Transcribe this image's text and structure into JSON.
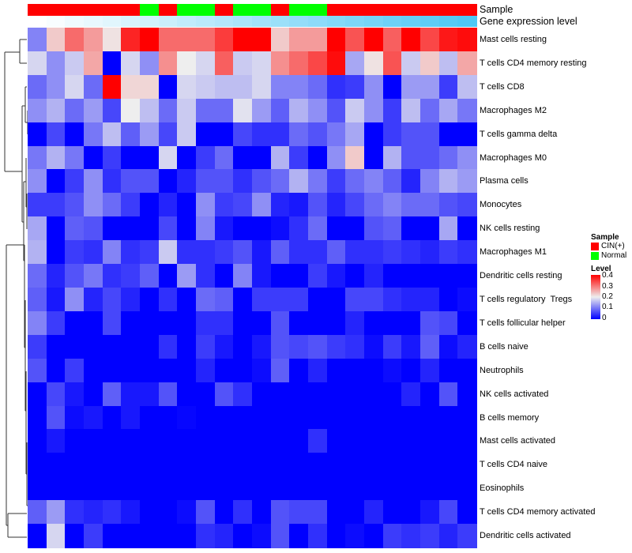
{
  "chart_data": {
    "type": "heatmap",
    "title": "",
    "columns_count": 24,
    "annotations": {
      "sample": {
        "label": "Sample",
        "values": [
          "CIN(+)",
          "CIN(+)",
          "CIN(+)",
          "CIN(+)",
          "CIN(+)",
          "CIN(+)",
          "Normal",
          "CIN(+)",
          "Normal",
          "Normal",
          "CIN(+)",
          "Normal",
          "Normal",
          "CIN(+)",
          "Normal",
          "Normal",
          "CIN(+)",
          "CIN(+)",
          "CIN(+)",
          "CIN(+)",
          "CIN(+)",
          "CIN(+)",
          "CIN(+)",
          "CIN(+)"
        ],
        "colors": {
          "CIN(+)": "#FF0000",
          "Normal": "#00FF00"
        }
      },
      "gene_expression_level": {
        "label": "Gene expression level",
        "values": [
          0.0,
          0.04,
          0.09,
          0.13,
          0.17,
          0.22,
          0.26,
          0.3,
          0.35,
          0.39,
          0.43,
          0.48,
          0.52,
          0.57,
          0.61,
          0.65,
          0.7,
          0.74,
          0.78,
          0.83,
          0.87,
          0.91,
          0.96,
          1.0
        ],
        "color_low": "#FFFFFF",
        "color_high": "#4FC8F5"
      }
    },
    "rows": [
      {
        "label": "Mast cells resting",
        "values": [
          0.11,
          0.23,
          0.31,
          0.27,
          0.21,
          0.37,
          0.4,
          0.31,
          0.31,
          0.31,
          0.35,
          0.4,
          0.4,
          0.23,
          0.27,
          0.27,
          0.4,
          0.33,
          0.4,
          0.32,
          0.4,
          0.34,
          0.38,
          0.39
        ]
      },
      {
        "label": "T cells CD4 memory resting",
        "values": [
          0.18,
          0.12,
          0.17,
          0.26,
          0,
          0.18,
          0.12,
          0.28,
          0.2,
          0.18,
          0.32,
          0.17,
          0.18,
          0.28,
          0.31,
          0.34,
          0.39,
          0.14,
          0.21,
          0.33,
          0.17,
          0.23,
          0.16,
          0.26
        ]
      },
      {
        "label": "T cells CD8",
        "values": [
          0.09,
          0.12,
          0.18,
          0.09,
          0.4,
          0.22,
          0.22,
          0,
          0.18,
          0.17,
          0.16,
          0.16,
          0.18,
          0.11,
          0.11,
          0.09,
          0.04,
          0.05,
          0.12,
          0,
          0.13,
          0.13,
          0.05,
          0.16
        ]
      },
      {
        "label": "Macrophages M2",
        "values": [
          0.12,
          0.15,
          0.09,
          0.13,
          0.06,
          0.2,
          0.16,
          0.09,
          0.17,
          0.09,
          0.09,
          0.19,
          0.13,
          0.08,
          0.15,
          0.12,
          0.07,
          0.17,
          0.12,
          0.05,
          0.16,
          0.09,
          0.14,
          0.1
        ]
      },
      {
        "label": "T cells gamma delta",
        "values": [
          0,
          0.06,
          0,
          0.1,
          0.16,
          0.08,
          0.13,
          0.06,
          0.17,
          0,
          0,
          0.06,
          0.04,
          0.04,
          0.09,
          0.07,
          0.1,
          0.14,
          0,
          0.05,
          0.07,
          0.07,
          0,
          0
        ]
      },
      {
        "label": "Macrophages M0",
        "values": [
          0.1,
          0.15,
          0.1,
          0,
          0.05,
          0,
          0,
          0.18,
          0,
          0.05,
          0.09,
          0,
          0,
          0.15,
          0.05,
          0,
          0.12,
          0.23,
          0,
          0.15,
          0.07,
          0.07,
          0.09,
          0.12
        ]
      },
      {
        "label": "Plasma cells",
        "values": [
          0.12,
          0,
          0.05,
          0.12,
          0.04,
          0.07,
          0.07,
          0,
          0.03,
          0.07,
          0.07,
          0.04,
          0.07,
          0.09,
          0.15,
          0.1,
          0.05,
          0.09,
          0.11,
          0.08,
          0.03,
          0.11,
          0.15,
          0.13
        ]
      },
      {
        "label": "Monocytes",
        "values": [
          0.05,
          0.05,
          0.07,
          0.12,
          0.09,
          0.05,
          0,
          0.03,
          0,
          0.12,
          0.05,
          0.06,
          0.12,
          0.03,
          0.02,
          0.07,
          0.03,
          0.06,
          0.09,
          0.11,
          0.09,
          0.09,
          0.07,
          0.06
        ]
      },
      {
        "label": "NK cells resting",
        "values": [
          0.14,
          0,
          0.08,
          0.07,
          0,
          0,
          0,
          0.06,
          0,
          0.11,
          0.02,
          0,
          0,
          0.01,
          0.04,
          0.09,
          0,
          0,
          0.07,
          0.08,
          0,
          0,
          0.14,
          0
        ]
      },
      {
        "label": "Macrophages M1",
        "values": [
          0.15,
          0,
          0.05,
          0.04,
          0.11,
          0.04,
          0.05,
          0.17,
          0.04,
          0.04,
          0.05,
          0.07,
          0.02,
          0.08,
          0.04,
          0.04,
          0.08,
          0.04,
          0.04,
          0.05,
          0.04,
          0.03,
          0.05,
          0.04
        ]
      },
      {
        "label": "Dendritic cells resting",
        "values": [
          0.09,
          0.03,
          0.07,
          0.1,
          0.04,
          0.05,
          0.08,
          0,
          0.13,
          0.04,
          0,
          0.11,
          0.02,
          0,
          0,
          0.05,
          0.02,
          0,
          0.03,
          0,
          0,
          0,
          0,
          0
        ]
      },
      {
        "label": "T cells regulatory  Tregs",
        "values": [
          0.08,
          0.02,
          0.12,
          0.03,
          0.06,
          0.03,
          0,
          0.04,
          0,
          0.09,
          0.08,
          0,
          0.05,
          0.05,
          0.05,
          0,
          0,
          0.06,
          0.06,
          0.04,
          0.03,
          0.03,
          0,
          0.01
        ]
      },
      {
        "label": "T cells follicular helper",
        "values": [
          0.11,
          0.05,
          0,
          0,
          0.06,
          0,
          0,
          0,
          0,
          0.04,
          0.04,
          0,
          0,
          0.07,
          0,
          0,
          0,
          0.03,
          0,
          0,
          0,
          0.07,
          0.06,
          0
        ]
      },
      {
        "label": "B cells naive",
        "values": [
          0.05,
          0,
          0,
          0,
          0,
          0,
          0,
          0.04,
          0,
          0.05,
          0.02,
          0,
          0.02,
          0.07,
          0.06,
          0.07,
          0.05,
          0.04,
          0.01,
          0.05,
          0.02,
          0.08,
          0.01,
          0.03
        ]
      },
      {
        "label": "Neutrophils",
        "values": [
          0.07,
          0,
          0.05,
          0,
          0,
          0,
          0,
          0,
          0,
          0.03,
          0,
          0,
          0.01,
          0.08,
          0,
          0.03,
          0,
          0,
          0,
          0.01,
          0,
          0.03,
          0,
          0
        ]
      },
      {
        "label": "NK cells activated",
        "values": [
          0,
          0.06,
          0.02,
          0,
          0.08,
          0.02,
          0.02,
          0.07,
          0,
          0,
          0.07,
          0.04,
          0,
          0,
          0,
          0,
          0,
          0,
          0,
          0,
          0.03,
          0,
          0.07,
          0
        ]
      },
      {
        "label": "B cells memory",
        "values": [
          0,
          0.07,
          0.01,
          0.02,
          0,
          0.02,
          0,
          0,
          0.005,
          0,
          0,
          0,
          0,
          0,
          0,
          0,
          0,
          0,
          0,
          0,
          0,
          0,
          0,
          0
        ]
      },
      {
        "label": "Mast cells activated",
        "values": [
          0,
          0.02,
          0,
          0,
          0,
          0,
          0,
          0,
          0,
          0,
          0,
          0,
          0,
          0,
          0,
          0.04,
          0,
          0,
          0,
          0,
          0,
          0,
          0,
          0
        ]
      },
      {
        "label": "T cells CD4 naive",
        "values": [
          0,
          0,
          0,
          0,
          0,
          0,
          0,
          0,
          0,
          0,
          0,
          0,
          0,
          0,
          0,
          0,
          0,
          0,
          0,
          0,
          0,
          0,
          0,
          0
        ]
      },
      {
        "label": "Eosinophils",
        "values": [
          0,
          0,
          0,
          0,
          0,
          0,
          0,
          0,
          0,
          0,
          0,
          0,
          0,
          0,
          0,
          0,
          0,
          0,
          0,
          0,
          0,
          0,
          0,
          0
        ]
      },
      {
        "label": "T cells CD4 memory activated",
        "values": [
          0.08,
          0.13,
          0.04,
          0.03,
          0.04,
          0.02,
          0,
          0,
          0.01,
          0.07,
          0,
          0.04,
          0,
          0.07,
          0.06,
          0.06,
          0,
          0,
          0.03,
          0,
          0,
          0.02,
          0.06,
          0
        ]
      },
      {
        "label": "Dendritic cells activated",
        "values": [
          0,
          0.18,
          0,
          0.05,
          0,
          0,
          0,
          0,
          0,
          0.04,
          0.03,
          0,
          0.01,
          0.07,
          0,
          0.04,
          0,
          0.01,
          0,
          0.05,
          0.04,
          0.05,
          0.03,
          0.05
        ]
      }
    ],
    "color_scale": {
      "min": 0,
      "max": 0.4,
      "low": "#0000FF",
      "mid": "#EEEEEE",
      "high": "#FF0000"
    },
    "legend": {
      "placement": "right",
      "sample_title": "Sample",
      "sample_entries": [
        {
          "label": "CIN(+)",
          "color": "#FF0000"
        },
        {
          "label": "Normal",
          "color": "#00FF00"
        }
      ],
      "level_title": "Level",
      "level_ticks": [
        "0.4",
        "0.3",
        "0.2",
        "0.1",
        "0"
      ]
    }
  }
}
